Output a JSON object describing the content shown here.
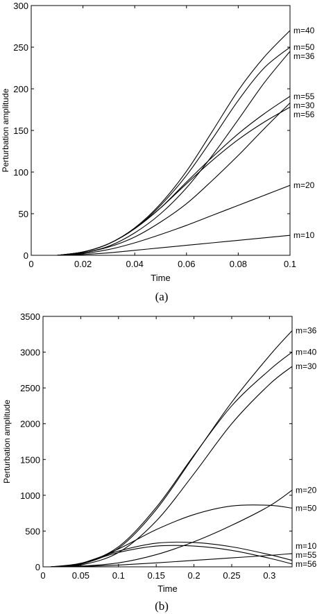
{
  "chart_data": [
    {
      "type": "line",
      "caption": "(a)",
      "xlabel": "Time",
      "ylabel": "Perturbation amplitude",
      "xlim": [
        0,
        0.1
      ],
      "ylim": [
        0,
        300
      ],
      "xticks": [
        0,
        0.02,
        0.04,
        0.06,
        0.08,
        0.1
      ],
      "xtick_labels": [
        "0",
        "0.02",
        "0.04",
        "0.06",
        "0.08",
        "0.1"
      ],
      "yticks": [
        0,
        50,
        100,
        150,
        200,
        250,
        300
      ],
      "ytick_labels": [
        "0",
        "50",
        "100",
        "150",
        "200",
        "250",
        "300"
      ],
      "grid": false,
      "series": [
        {
          "name": "m=40",
          "x": [
            0.01,
            0.02,
            0.03,
            0.04,
            0.05,
            0.06,
            0.07,
            0.08,
            0.09,
            0.1
          ],
          "values": [
            0,
            4,
            14,
            33,
            62,
            101,
            149,
            198,
            238,
            270
          ]
        },
        {
          "name": "m=50",
          "x": [
            0.01,
            0.02,
            0.03,
            0.04,
            0.05,
            0.06,
            0.07,
            0.08,
            0.09,
            0.1
          ],
          "values": [
            0,
            4,
            14,
            32,
            60,
            96,
            140,
            186,
            225,
            250
          ]
        },
        {
          "name": "m=36",
          "x": [
            0.01,
            0.02,
            0.03,
            0.04,
            0.05,
            0.06,
            0.07,
            0.08,
            0.09,
            0.1
          ],
          "values": [
            0,
            3,
            11,
            27,
            50,
            81,
            120,
            163,
            207,
            245
          ]
        },
        {
          "name": "m=55",
          "x": [
            0.01,
            0.02,
            0.03,
            0.04,
            0.05,
            0.06,
            0.07,
            0.08,
            0.09,
            0.1
          ],
          "values": [
            0,
            4,
            14,
            32,
            57,
            88,
            118,
            146,
            170,
            191
          ]
        },
        {
          "name": "m=30",
          "x": [
            0.01,
            0.02,
            0.03,
            0.04,
            0.05,
            0.06,
            0.07,
            0.08,
            0.09,
            0.1
          ],
          "values": [
            0,
            3,
            10,
            22,
            40,
            62,
            90,
            120,
            152,
            183
          ]
        },
        {
          "name": "m=56",
          "x": [
            0.01,
            0.02,
            0.03,
            0.04,
            0.05,
            0.06,
            0.07,
            0.08,
            0.09,
            0.1
          ],
          "values": [
            0,
            4,
            14,
            32,
            57,
            86,
            114,
            139,
            160,
            178
          ]
        },
        {
          "name": "m=20",
          "x": [
            0.01,
            0.02,
            0.03,
            0.04,
            0.05,
            0.06,
            0.07,
            0.08,
            0.09,
            0.1
          ],
          "values": [
            0,
            2,
            7,
            15,
            25,
            36,
            48,
            60,
            72,
            84
          ]
        },
        {
          "name": "m=10",
          "x": [
            0.01,
            0.02,
            0.03,
            0.04,
            0.05,
            0.06,
            0.07,
            0.08,
            0.09,
            0.1
          ],
          "values": [
            0,
            1,
            3,
            6,
            9,
            12,
            15,
            18,
            21,
            24
          ]
        }
      ]
    },
    {
      "type": "line",
      "caption": "(b)",
      "xlabel": "Time",
      "ylabel": "Perturbation amplitude",
      "xlim": [
        0,
        0.33
      ],
      "ylim": [
        0,
        3500
      ],
      "xticks": [
        0,
        0.05,
        0.1,
        0.15,
        0.2,
        0.25,
        0.3
      ],
      "xtick_labels": [
        "0",
        "0.05",
        "0.1",
        "0.15",
        "0.2",
        "0.25",
        "0.3"
      ],
      "yticks": [
        0,
        500,
        1000,
        1500,
        2000,
        2500,
        3000,
        3500
      ],
      "ytick_labels": [
        "0",
        "500",
        "1000",
        "1500",
        "2000",
        "2500",
        "3000",
        "3500"
      ],
      "grid": false,
      "series": [
        {
          "name": "m=36",
          "x": [
            0.01,
            0.05,
            0.1,
            0.15,
            0.2,
            0.25,
            0.3,
            0.33
          ],
          "values": [
            0,
            35,
            260,
            800,
            1550,
            2300,
            2950,
            3300
          ]
        },
        {
          "name": "m=40",
          "x": [
            0.01,
            0.05,
            0.1,
            0.15,
            0.2,
            0.25,
            0.3,
            0.33
          ],
          "values": [
            0,
            40,
            280,
            830,
            1560,
            2250,
            2750,
            3000
          ]
        },
        {
          "name": "m=30",
          "x": [
            0.01,
            0.05,
            0.1,
            0.15,
            0.2,
            0.25,
            0.3,
            0.33
          ],
          "values": [
            0,
            25,
            200,
            640,
            1300,
            2000,
            2550,
            2800
          ]
        },
        {
          "name": "m=20",
          "x": [
            0.01,
            0.05,
            0.1,
            0.15,
            0.2,
            0.25,
            0.3,
            0.33
          ],
          "values": [
            0,
            10,
            55,
            170,
            350,
            580,
            850,
            1070
          ]
        },
        {
          "name": "m=50",
          "x": [
            0.01,
            0.05,
            0.1,
            0.15,
            0.2,
            0.25,
            0.3,
            0.33
          ],
          "values": [
            0,
            40,
            250,
            520,
            730,
            850,
            860,
            820
          ]
        },
        {
          "name": "m=10",
          "x": [
            0.01,
            0.05,
            0.1,
            0.15,
            0.2,
            0.25,
            0.3,
            0.33
          ],
          "values": [
            0,
            5,
            25,
            55,
            90,
            125,
            160,
            185
          ]
        },
        {
          "name": "m=55",
          "x": [
            0.01,
            0.05,
            0.1,
            0.15,
            0.2,
            0.25,
            0.3,
            0.33
          ],
          "values": [
            0,
            50,
            220,
            330,
            340,
            280,
            170,
            90
          ]
        },
        {
          "name": "m=56",
          "x": [
            0.01,
            0.05,
            0.1,
            0.15,
            0.2,
            0.25,
            0.3,
            0.33
          ],
          "values": [
            0,
            45,
            200,
            290,
            290,
            230,
            120,
            40
          ]
        }
      ]
    }
  ]
}
